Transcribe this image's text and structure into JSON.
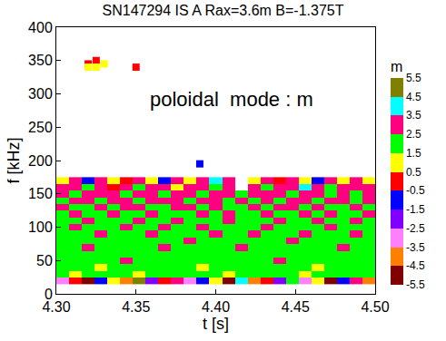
{
  "chart_data": {
    "type": "heatmap",
    "title": "SN147294 IS A Rax=3.6m B=-1.375T",
    "x_label": "t [s]",
    "y_label": "f [kHz]",
    "annotation": "poloidal  mode : m",
    "colorbar_title": "m",
    "xlim": [
      4.3,
      4.5
    ],
    "xticks": [
      {
        "value": 4.3,
        "label": "4.30"
      },
      {
        "value": 4.35,
        "label": "4.35"
      },
      {
        "value": 4.4,
        "label": "4.40"
      },
      {
        "value": 4.45,
        "label": "4.45"
      },
      {
        "value": 4.5,
        "label": "4.50"
      }
    ],
    "ylim": [
      0,
      400
    ],
    "yticks": [
      0,
      50,
      100,
      150,
      200,
      250,
      300,
      350,
      400
    ],
    "grid": false,
    "colorbar_range": [
      -5.5,
      5.5
    ],
    "colorbar_ticks": [
      5.5,
      4.5,
      3.5,
      2.5,
      1.5,
      0.5,
      -0.5,
      -1.5,
      -2.5,
      -3.5,
      -4.5,
      -5.5
    ],
    "colors": [
      "#800000",
      "#ff8000",
      "#ff80ff",
      "#8000ff",
      "#0000ff",
      "#ff0000",
      "#ffff00",
      "#00ff00",
      "#ff0080",
      "#00ffff",
      "#808000"
    ],
    "x": [
      4.304,
      4.312,
      4.32,
      4.328,
      4.336,
      4.344,
      4.352,
      4.36,
      4.368,
      4.376,
      4.384,
      4.392,
      4.4,
      4.408,
      4.416,
      4.424,
      4.432,
      4.44,
      4.448,
      4.456,
      4.464,
      4.472,
      4.48,
      4.488,
      4.496
    ],
    "y": [
      20,
      30,
      40,
      50,
      60,
      70,
      80,
      90,
      100,
      110,
      120,
      130,
      140,
      150,
      160,
      170
    ],
    "cells": [
      [
        -3,
        0,
        -5,
        -1,
        1,
        -4,
        5,
        -2,
        0,
        3,
        -3,
        -1,
        1,
        -5,
        4,
        -4,
        0,
        -2,
        2,
        -3,
        1,
        -5,
        -1,
        3,
        -4
      ],
      [
        2,
        1,
        2,
        2,
        2,
        2,
        1,
        2,
        2,
        2,
        2,
        2,
        2,
        1,
        2,
        2,
        2,
        2,
        2,
        1,
        2,
        2,
        2,
        2,
        2
      ],
      [
        2,
        2,
        2,
        1,
        2,
        2,
        2,
        2,
        2,
        2,
        2,
        1,
        2,
        2,
        2,
        2,
        2,
        2,
        2,
        2,
        1,
        2,
        2,
        2,
        2
      ],
      [
        2,
        2,
        2,
        2,
        2,
        3,
        2,
        2,
        2,
        2,
        2,
        2,
        2,
        2,
        2,
        2,
        2,
        3,
        2,
        2,
        2,
        2,
        2,
        2,
        2
      ],
      [
        2,
        2,
        2,
        2,
        2,
        2,
        2,
        2,
        2,
        2,
        2,
        2,
        2,
        2,
        2,
        2,
        2,
        2,
        2,
        2,
        2,
        2,
        2,
        2,
        2
      ],
      [
        2,
        2,
        3,
        2,
        2,
        2,
        2,
        2,
        3,
        2,
        2,
        2,
        2,
        2,
        3,
        2,
        2,
        2,
        2,
        2,
        2,
        2,
        3,
        2,
        2
      ],
      [
        2,
        2,
        2,
        2,
        2,
        2,
        2,
        2,
        2,
        2,
        3,
        2,
        2,
        2,
        2,
        2,
        2,
        2,
        3,
        2,
        2,
        2,
        2,
        2,
        2
      ],
      [
        2,
        2,
        2,
        3,
        2,
        2,
        2,
        3,
        2,
        2,
        2,
        2,
        3,
        2,
        2,
        3,
        2,
        2,
        2,
        3,
        2,
        2,
        2,
        3,
        2
      ],
      [
        2,
        3,
        2,
        2,
        2,
        3,
        2,
        2,
        3,
        2,
        2,
        3,
        2,
        2,
        2,
        2,
        3,
        2,
        2,
        2,
        2,
        3,
        2,
        2,
        2
      ],
      [
        2,
        2,
        3,
        2,
        2,
        2,
        3,
        2,
        2,
        3,
        2,
        2,
        2,
        3,
        2,
        2,
        2,
        3,
        2,
        2,
        3,
        2,
        2,
        3,
        2
      ],
      [
        2,
        3,
        2,
        2,
        3,
        2,
        2,
        3,
        2,
        2,
        2,
        3,
        2,
        3,
        2,
        2,
        3,
        2,
        2,
        3,
        2,
        3,
        2,
        2,
        3
      ],
      [
        3,
        2,
        2,
        3,
        2,
        3,
        3,
        2,
        2,
        3,
        3,
        2,
        3,
        2,
        2,
        3,
        2,
        3,
        3,
        2,
        3,
        2,
        2,
        3,
        2
      ],
      [
        2,
        3,
        3,
        2,
        3,
        3,
        2,
        3,
        3,
        3,
        2,
        3,
        3,
        2,
        3,
        2,
        3,
        2,
        3,
        3,
        2,
        3,
        3,
        2,
        3
      ],
      [
        3,
        2,
        3,
        3,
        3,
        2,
        3,
        3,
        2,
        3,
        3,
        2,
        3,
        3,
        2,
        3,
        3,
        3,
        2,
        3,
        3,
        2,
        3,
        2,
        3
      ],
      [
        3,
        3,
        2,
        3,
        0,
        3,
        2,
        3,
        3,
        1,
        3,
        3,
        2,
        3,
        null,
        3,
        2,
        3,
        3,
        4,
        3,
        2,
        3,
        3,
        3
      ],
      [
        1,
        3,
        -1,
        3,
        1,
        0,
        3,
        1,
        -1,
        3,
        1,
        3,
        4,
        3,
        null,
        1,
        3,
        0,
        3,
        1,
        -1,
        3,
        1,
        3,
        1
      ]
    ],
    "points": {
      "x": [
        4.32,
        4.32,
        4.325,
        4.325,
        4.33,
        4.35,
        4.39
      ],
      "y": [
        345,
        340,
        350,
        340,
        345,
        340,
        195
      ],
      "m": [
        0,
        1,
        0,
        1,
        1,
        0,
        -1
      ]
    }
  }
}
